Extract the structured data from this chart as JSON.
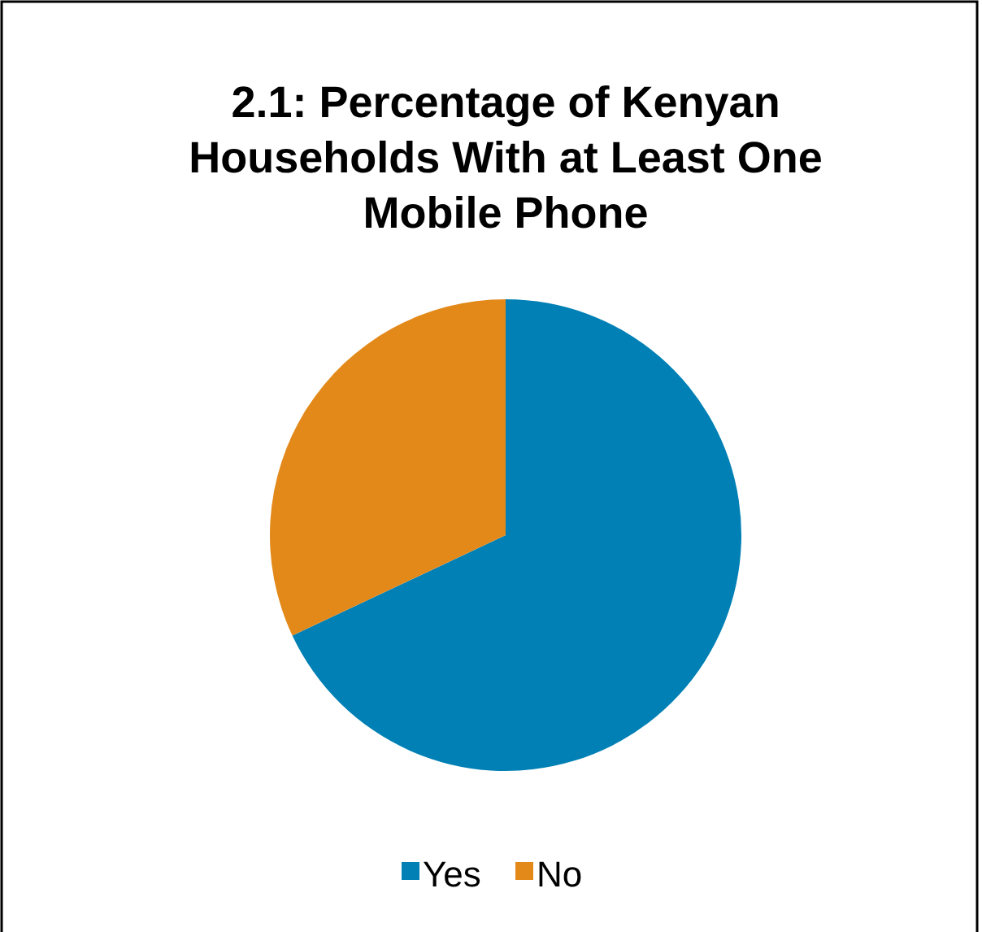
{
  "chart_data": {
    "type": "pie",
    "title": "2.1: Percentage of Kenyan Households With at Least One Mobile Phone",
    "categories": [
      "Yes",
      "No"
    ],
    "values": [
      68,
      32
    ],
    "colors": [
      "#0080b4",
      "#e3891a"
    ],
    "legend": "bottom"
  }
}
